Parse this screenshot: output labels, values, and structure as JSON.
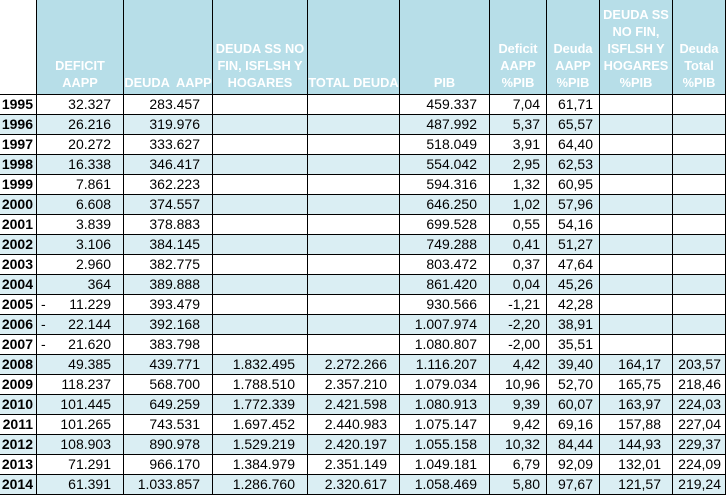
{
  "table": {
    "corner_label": "",
    "columns": [
      {
        "key": "year",
        "label_lines": []
      },
      {
        "key": "deficit_aapp",
        "label_lines": [
          "DEFICIT",
          "AAPP"
        ]
      },
      {
        "key": "deuda_aapp",
        "label_lines": [
          "DEUDA  AAPP"
        ]
      },
      {
        "key": "deuda_ss",
        "label_lines": [
          "DEUDA SS NO",
          "FIN, ISFLSH Y",
          "HOGARES"
        ]
      },
      {
        "key": "total_deuda",
        "label_lines": [
          "TOTAL DEUDA"
        ]
      },
      {
        "key": "pib",
        "label_lines": [
          "PIB"
        ]
      },
      {
        "key": "deficit_pct",
        "label_lines": [
          "Deficit",
          "AAPP",
          "%PIB"
        ]
      },
      {
        "key": "deuda_pct",
        "label_lines": [
          "Deuda",
          "AAPP",
          "%PIB"
        ]
      },
      {
        "key": "deuda_ss_pct",
        "label_lines": [
          "DEUDA SS",
          "NO FIN,",
          "ISFLSH Y",
          "HOGARES",
          "%PIB"
        ]
      },
      {
        "key": "total_pct",
        "label_lines": [
          "Deuda",
          "Total",
          "%PIB"
        ]
      }
    ],
    "rows": [
      {
        "year": "1995",
        "deficit_sign": "",
        "deficit_aapp": "32.327",
        "deuda_aapp": "283.457",
        "deuda_ss": "",
        "total_deuda": "",
        "pib": "459.337",
        "deficit_pct": "7,04",
        "deuda_pct": "61,71",
        "deuda_ss_pct": "",
        "total_pct": ""
      },
      {
        "year": "1996",
        "deficit_sign": "",
        "deficit_aapp": "26.216",
        "deuda_aapp": "319.976",
        "deuda_ss": "",
        "total_deuda": "",
        "pib": "487.992",
        "deficit_pct": "5,37",
        "deuda_pct": "65,57",
        "deuda_ss_pct": "",
        "total_pct": ""
      },
      {
        "year": "1997",
        "deficit_sign": "",
        "deficit_aapp": "20.272",
        "deuda_aapp": "333.627",
        "deuda_ss": "",
        "total_deuda": "",
        "pib": "518.049",
        "deficit_pct": "3,91",
        "deuda_pct": "64,40",
        "deuda_ss_pct": "",
        "total_pct": ""
      },
      {
        "year": "1998",
        "deficit_sign": "",
        "deficit_aapp": "16.338",
        "deuda_aapp": "346.417",
        "deuda_ss": "",
        "total_deuda": "",
        "pib": "554.042",
        "deficit_pct": "2,95",
        "deuda_pct": "62,53",
        "deuda_ss_pct": "",
        "total_pct": ""
      },
      {
        "year": "1999",
        "deficit_sign": "",
        "deficit_aapp": "7.861",
        "deuda_aapp": "362.223",
        "deuda_ss": "",
        "total_deuda": "",
        "pib": "594.316",
        "deficit_pct": "1,32",
        "deuda_pct": "60,95",
        "deuda_ss_pct": "",
        "total_pct": ""
      },
      {
        "year": "2000",
        "deficit_sign": "",
        "deficit_aapp": "6.608",
        "deuda_aapp": "374.557",
        "deuda_ss": "",
        "total_deuda": "",
        "pib": "646.250",
        "deficit_pct": "1,02",
        "deuda_pct": "57,96",
        "deuda_ss_pct": "",
        "total_pct": ""
      },
      {
        "year": "2001",
        "deficit_sign": "",
        "deficit_aapp": "3.839",
        "deuda_aapp": "378.883",
        "deuda_ss": "",
        "total_deuda": "",
        "pib": "699.528",
        "deficit_pct": "0,55",
        "deuda_pct": "54,16",
        "deuda_ss_pct": "",
        "total_pct": ""
      },
      {
        "year": "2002",
        "deficit_sign": "",
        "deficit_aapp": "3.106",
        "deuda_aapp": "384.145",
        "deuda_ss": "",
        "total_deuda": "",
        "pib": "749.288",
        "deficit_pct": "0,41",
        "deuda_pct": "51,27",
        "deuda_ss_pct": "",
        "total_pct": ""
      },
      {
        "year": "2003",
        "deficit_sign": "",
        "deficit_aapp": "2.960",
        "deuda_aapp": "382.775",
        "deuda_ss": "",
        "total_deuda": "",
        "pib": "803.472",
        "deficit_pct": "0,37",
        "deuda_pct": "47,64",
        "deuda_ss_pct": "",
        "total_pct": ""
      },
      {
        "year": "2004",
        "deficit_sign": "",
        "deficit_aapp": "364",
        "deuda_aapp": "389.888",
        "deuda_ss": "",
        "total_deuda": "",
        "pib": "861.420",
        "deficit_pct": "0,04",
        "deuda_pct": "45,26",
        "deuda_ss_pct": "",
        "total_pct": ""
      },
      {
        "year": "2005",
        "deficit_sign": "-",
        "deficit_aapp": "11.229",
        "deuda_aapp": "393.479",
        "deuda_ss": "",
        "total_deuda": "",
        "pib": "930.566",
        "deficit_pct": "-1,21",
        "deuda_pct": "42,28",
        "deuda_ss_pct": "",
        "total_pct": ""
      },
      {
        "year": "2006",
        "deficit_sign": "-",
        "deficit_aapp": "22.144",
        "deuda_aapp": "392.168",
        "deuda_ss": "",
        "total_deuda": "",
        "pib": "1.007.974",
        "deficit_pct": "-2,20",
        "deuda_pct": "38,91",
        "deuda_ss_pct": "",
        "total_pct": ""
      },
      {
        "year": "2007",
        "deficit_sign": "-",
        "deficit_aapp": "21.620",
        "deuda_aapp": "383.798",
        "deuda_ss": "",
        "total_deuda": "",
        "pib": "1.080.807",
        "deficit_pct": "-2,00",
        "deuda_pct": "35,51",
        "deuda_ss_pct": "",
        "total_pct": ""
      },
      {
        "year": "2008",
        "deficit_sign": "",
        "deficit_aapp": "49.385",
        "deuda_aapp": "439.771",
        "deuda_ss": "1.832.495",
        "total_deuda": "2.272.266",
        "pib": "1.116.207",
        "deficit_pct": "4,42",
        "deuda_pct": "39,40",
        "deuda_ss_pct": "164,17",
        "total_pct": "203,57"
      },
      {
        "year": "2009",
        "deficit_sign": "",
        "deficit_aapp": "118.237",
        "deuda_aapp": "568.700",
        "deuda_ss": "1.788.510",
        "total_deuda": "2.357.210",
        "pib": "1.079.034",
        "deficit_pct": "10,96",
        "deuda_pct": "52,70",
        "deuda_ss_pct": "165,75",
        "total_pct": "218,46"
      },
      {
        "year": "2010",
        "deficit_sign": "",
        "deficit_aapp": "101.445",
        "deuda_aapp": "649.259",
        "deuda_ss": "1.772.339",
        "total_deuda": "2.421.598",
        "pib": "1.080.913",
        "deficit_pct": "9,39",
        "deuda_pct": "60,07",
        "deuda_ss_pct": "163,97",
        "total_pct": "224,03"
      },
      {
        "year": "2011",
        "deficit_sign": "",
        "deficit_aapp": "101.265",
        "deuda_aapp": "743.531",
        "deuda_ss": "1.697.452",
        "total_deuda": "2.440.983",
        "pib": "1.075.147",
        "deficit_pct": "9,42",
        "deuda_pct": "69,16",
        "deuda_ss_pct": "157,88",
        "total_pct": "227,04"
      },
      {
        "year": "2012",
        "deficit_sign": "",
        "deficit_aapp": "108.903",
        "deuda_aapp": "890.978",
        "deuda_ss": "1.529.219",
        "total_deuda": "2.420.197",
        "pib": "1.055.158",
        "deficit_pct": "10,32",
        "deuda_pct": "84,44",
        "deuda_ss_pct": "144,93",
        "total_pct": "229,37"
      },
      {
        "year": "2013",
        "deficit_sign": "",
        "deficit_aapp": "71.291",
        "deuda_aapp": "966.170",
        "deuda_ss": "1.384.979",
        "total_deuda": "2.351.149",
        "pib": "1.049.181",
        "deficit_pct": "6,79",
        "deuda_pct": "92,09",
        "deuda_ss_pct": "132,01",
        "total_pct": "224,09"
      },
      {
        "year": "2014",
        "deficit_sign": "",
        "deficit_aapp": "61.391",
        "deuda_aapp": "1.033.857",
        "deuda_ss": "1.286.760",
        "total_deuda": "2.320.617",
        "pib": "1.058.469",
        "deficit_pct": "5,80",
        "deuda_pct": "97,67",
        "deuda_ss_pct": "121,57",
        "total_pct": "219,24"
      }
    ]
  },
  "colors": {
    "header_fill": "#B7DEE8",
    "band_fill": "#DAEEF3",
    "header_text": "#FFFFFF",
    "grid_line": "#000000"
  }
}
